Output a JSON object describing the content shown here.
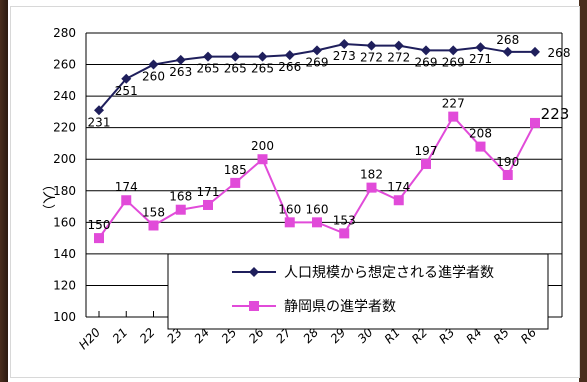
{
  "chart_data": {
    "type": "line",
    "categories": [
      "H20",
      "21",
      "22",
      "23",
      "24",
      "25",
      "26",
      "27",
      "28",
      "29",
      "30",
      "R1",
      "R2",
      "R3",
      "R4",
      "R5",
      "R6"
    ],
    "series": [
      {
        "name": "人口規模から想定される進学者数",
        "values": [
          231,
          251,
          260,
          263,
          265,
          265,
          265,
          266,
          269,
          273,
          272,
          272,
          269,
          269,
          271,
          268,
          268
        ],
        "color": "#1f1f5c",
        "marker": "diamond"
      },
      {
        "name": "静岡県の進学者数",
        "values": [
          150,
          174,
          158,
          168,
          171,
          185,
          200,
          160,
          160,
          153,
          182,
          174,
          197,
          227,
          208,
          190,
          223
        ],
        "color": "#e14bd9",
        "marker": "square"
      }
    ],
    "ylim": [
      100,
      280
    ],
    "yticks": [
      100,
      120,
      140,
      160,
      180,
      200,
      220,
      240,
      260,
      280
    ],
    "ylabel": "（人）",
    "grid": true,
    "legend_placement": "bottom-right"
  }
}
